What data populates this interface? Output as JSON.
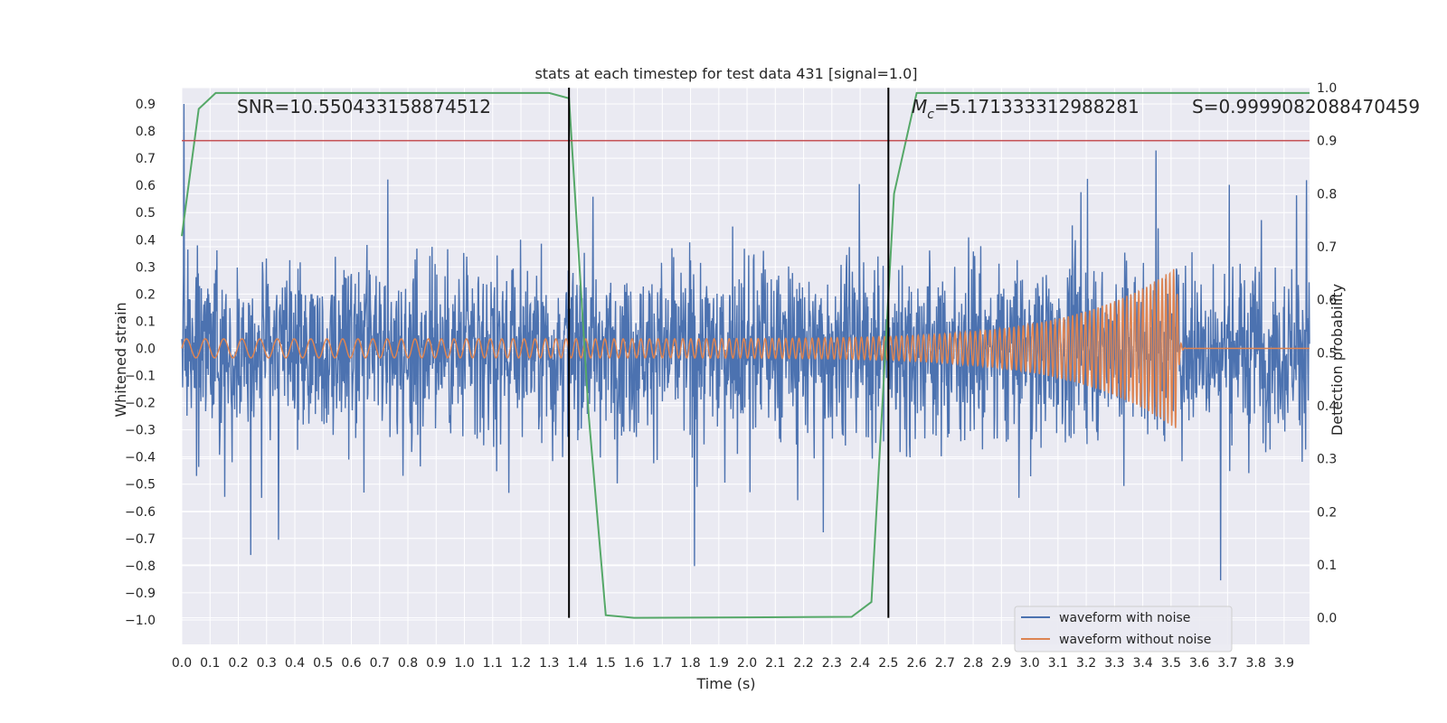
{
  "chart_data": {
    "type": "line",
    "title": "stats at each timestep for test data 431 [signal=1.0]",
    "xlabel": "Time (s)",
    "ylabel": "Whitened strain",
    "y2label": "Detection probability",
    "xlim": [
      0.0,
      3.99
    ],
    "ylim": [
      -1.09,
      0.96
    ],
    "y2lim": [
      -0.05,
      1.0
    ],
    "x_ticks": [
      "0.0",
      "0.1",
      "0.2",
      "0.3",
      "0.4",
      "0.5",
      "0.6",
      "0.7",
      "0.8",
      "0.9",
      "1.0",
      "1.1",
      "1.2",
      "1.3",
      "1.4",
      "1.5",
      "1.6",
      "1.7",
      "1.8",
      "1.9",
      "2.0",
      "2.1",
      "2.2",
      "2.3",
      "2.4",
      "2.5",
      "2.6",
      "2.7",
      "2.8",
      "2.9",
      "3.0",
      "3.1",
      "3.2",
      "3.3",
      "3.4",
      "3.5",
      "3.6",
      "3.7",
      "3.8",
      "3.9"
    ],
    "y_ticks": [
      "0.9",
      "0.8",
      "0.7",
      "0.6",
      "0.5",
      "0.4",
      "0.3",
      "0.2",
      "0.1",
      "0.0",
      "−0.1",
      "−0.2",
      "−0.3",
      "−0.4",
      "−0.5",
      "−0.6",
      "−0.7",
      "−0.8",
      "−0.9",
      "−1.0"
    ],
    "y2_ticks": [
      "1.0",
      "0.9",
      "0.8",
      "0.7",
      "0.6",
      "0.5",
      "0.4",
      "0.3",
      "0.2",
      "0.1",
      "0.0"
    ],
    "annotations": {
      "snr": "SNR=10.550433158874512",
      "mc_symbol": "M",
      "mc_sub": "c",
      "mc_value": "=5.171333312988281",
      "s": "S=0.9999082088470459"
    },
    "series": [
      {
        "name": "waveform with noise",
        "color": "#4c72b0",
        "description": "whitened strain noise, amplitude mostly within ±0.6, peaks to ±0.9",
        "seed": 431
      },
      {
        "name": "waveform without noise",
        "color": "#dd8452",
        "chirp": {
          "start_freq": 15,
          "end_freq": 75,
          "amp_start": 0.035,
          "amp_peak": 0.3,
          "merger_time": 3.52
        }
      }
    ],
    "detection_probability": {
      "color": "#55a868",
      "x": [
        0.0,
        0.06,
        0.12,
        0.5,
        1.0,
        1.3,
        1.37,
        1.44,
        1.5,
        1.6,
        2.0,
        2.37,
        2.44,
        2.52,
        2.6,
        3.0,
        3.5,
        3.99
      ],
      "y": [
        0.72,
        0.96,
        0.99,
        0.99,
        0.99,
        0.99,
        0.98,
        0.38,
        0.005,
        0.0,
        0.001,
        0.002,
        0.03,
        0.8,
        0.99,
        0.99,
        0.99,
        0.99
      ]
    },
    "threshold": {
      "value": 0.9,
      "axis": "y2",
      "color": "#c44e52"
    },
    "vlines": [
      {
        "x": 1.37,
        "color": "#000000"
      },
      {
        "x": 2.5,
        "color": "#000000"
      }
    ],
    "legend": {
      "position": "lower-right",
      "entries": [
        "waveform with noise",
        "waveform without noise"
      ]
    }
  }
}
